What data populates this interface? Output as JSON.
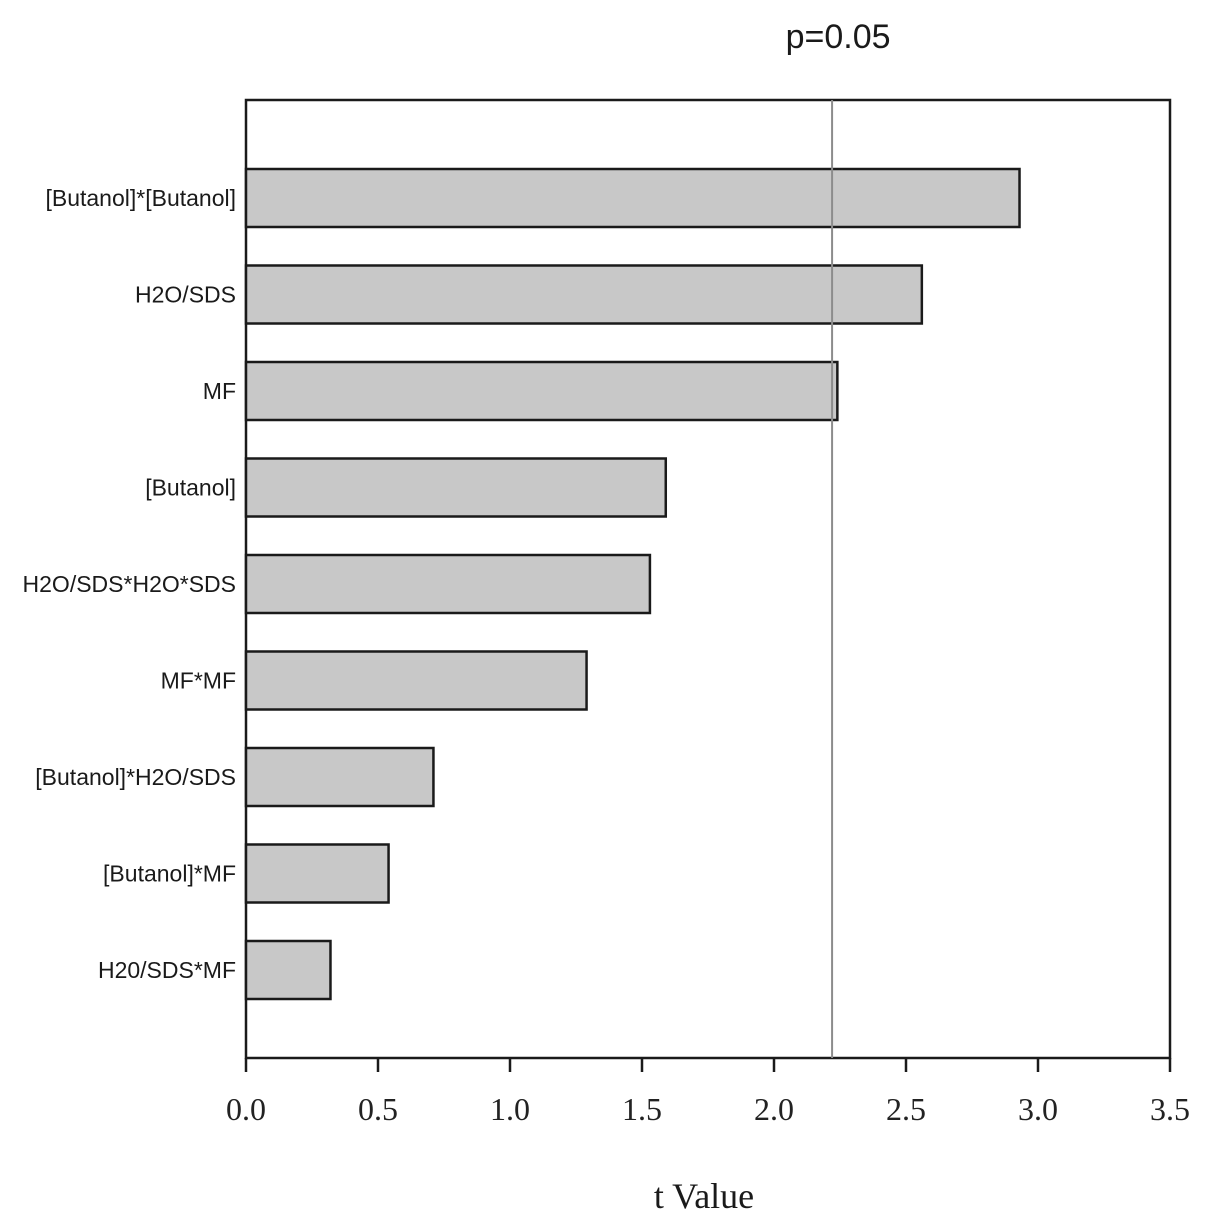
{
  "chart_data": {
    "type": "bar",
    "orientation": "horizontal",
    "title": "",
    "xlabel": "t Value",
    "ylabel": "",
    "categories": [
      "[Butanol]*[Butanol]",
      "H2O/SDS",
      "MF",
      "[Butanol]",
      "H2O/SDS*H2O*SDS",
      "MF*MF",
      "[Butanol]*H2O/SDS",
      "[Butanol]*MF",
      "H20/SDS*MF"
    ],
    "values": [
      2.93,
      2.56,
      2.24,
      1.59,
      1.53,
      1.29,
      0.71,
      0.54,
      0.32
    ],
    "xlim": [
      0,
      3.5
    ],
    "xticks": [
      "0.0",
      "0.5",
      "1.0",
      "1.5",
      "2.0",
      "2.5",
      "3.0",
      "3.5"
    ],
    "reference_line": {
      "value": 2.22,
      "label": "p=0.05"
    },
    "grid": false,
    "legend": "none",
    "colors": {
      "bar_fill": "#c8c8c8",
      "bar_stroke": "#1a1a1a",
      "ref_line": "#8c8c8c"
    }
  }
}
